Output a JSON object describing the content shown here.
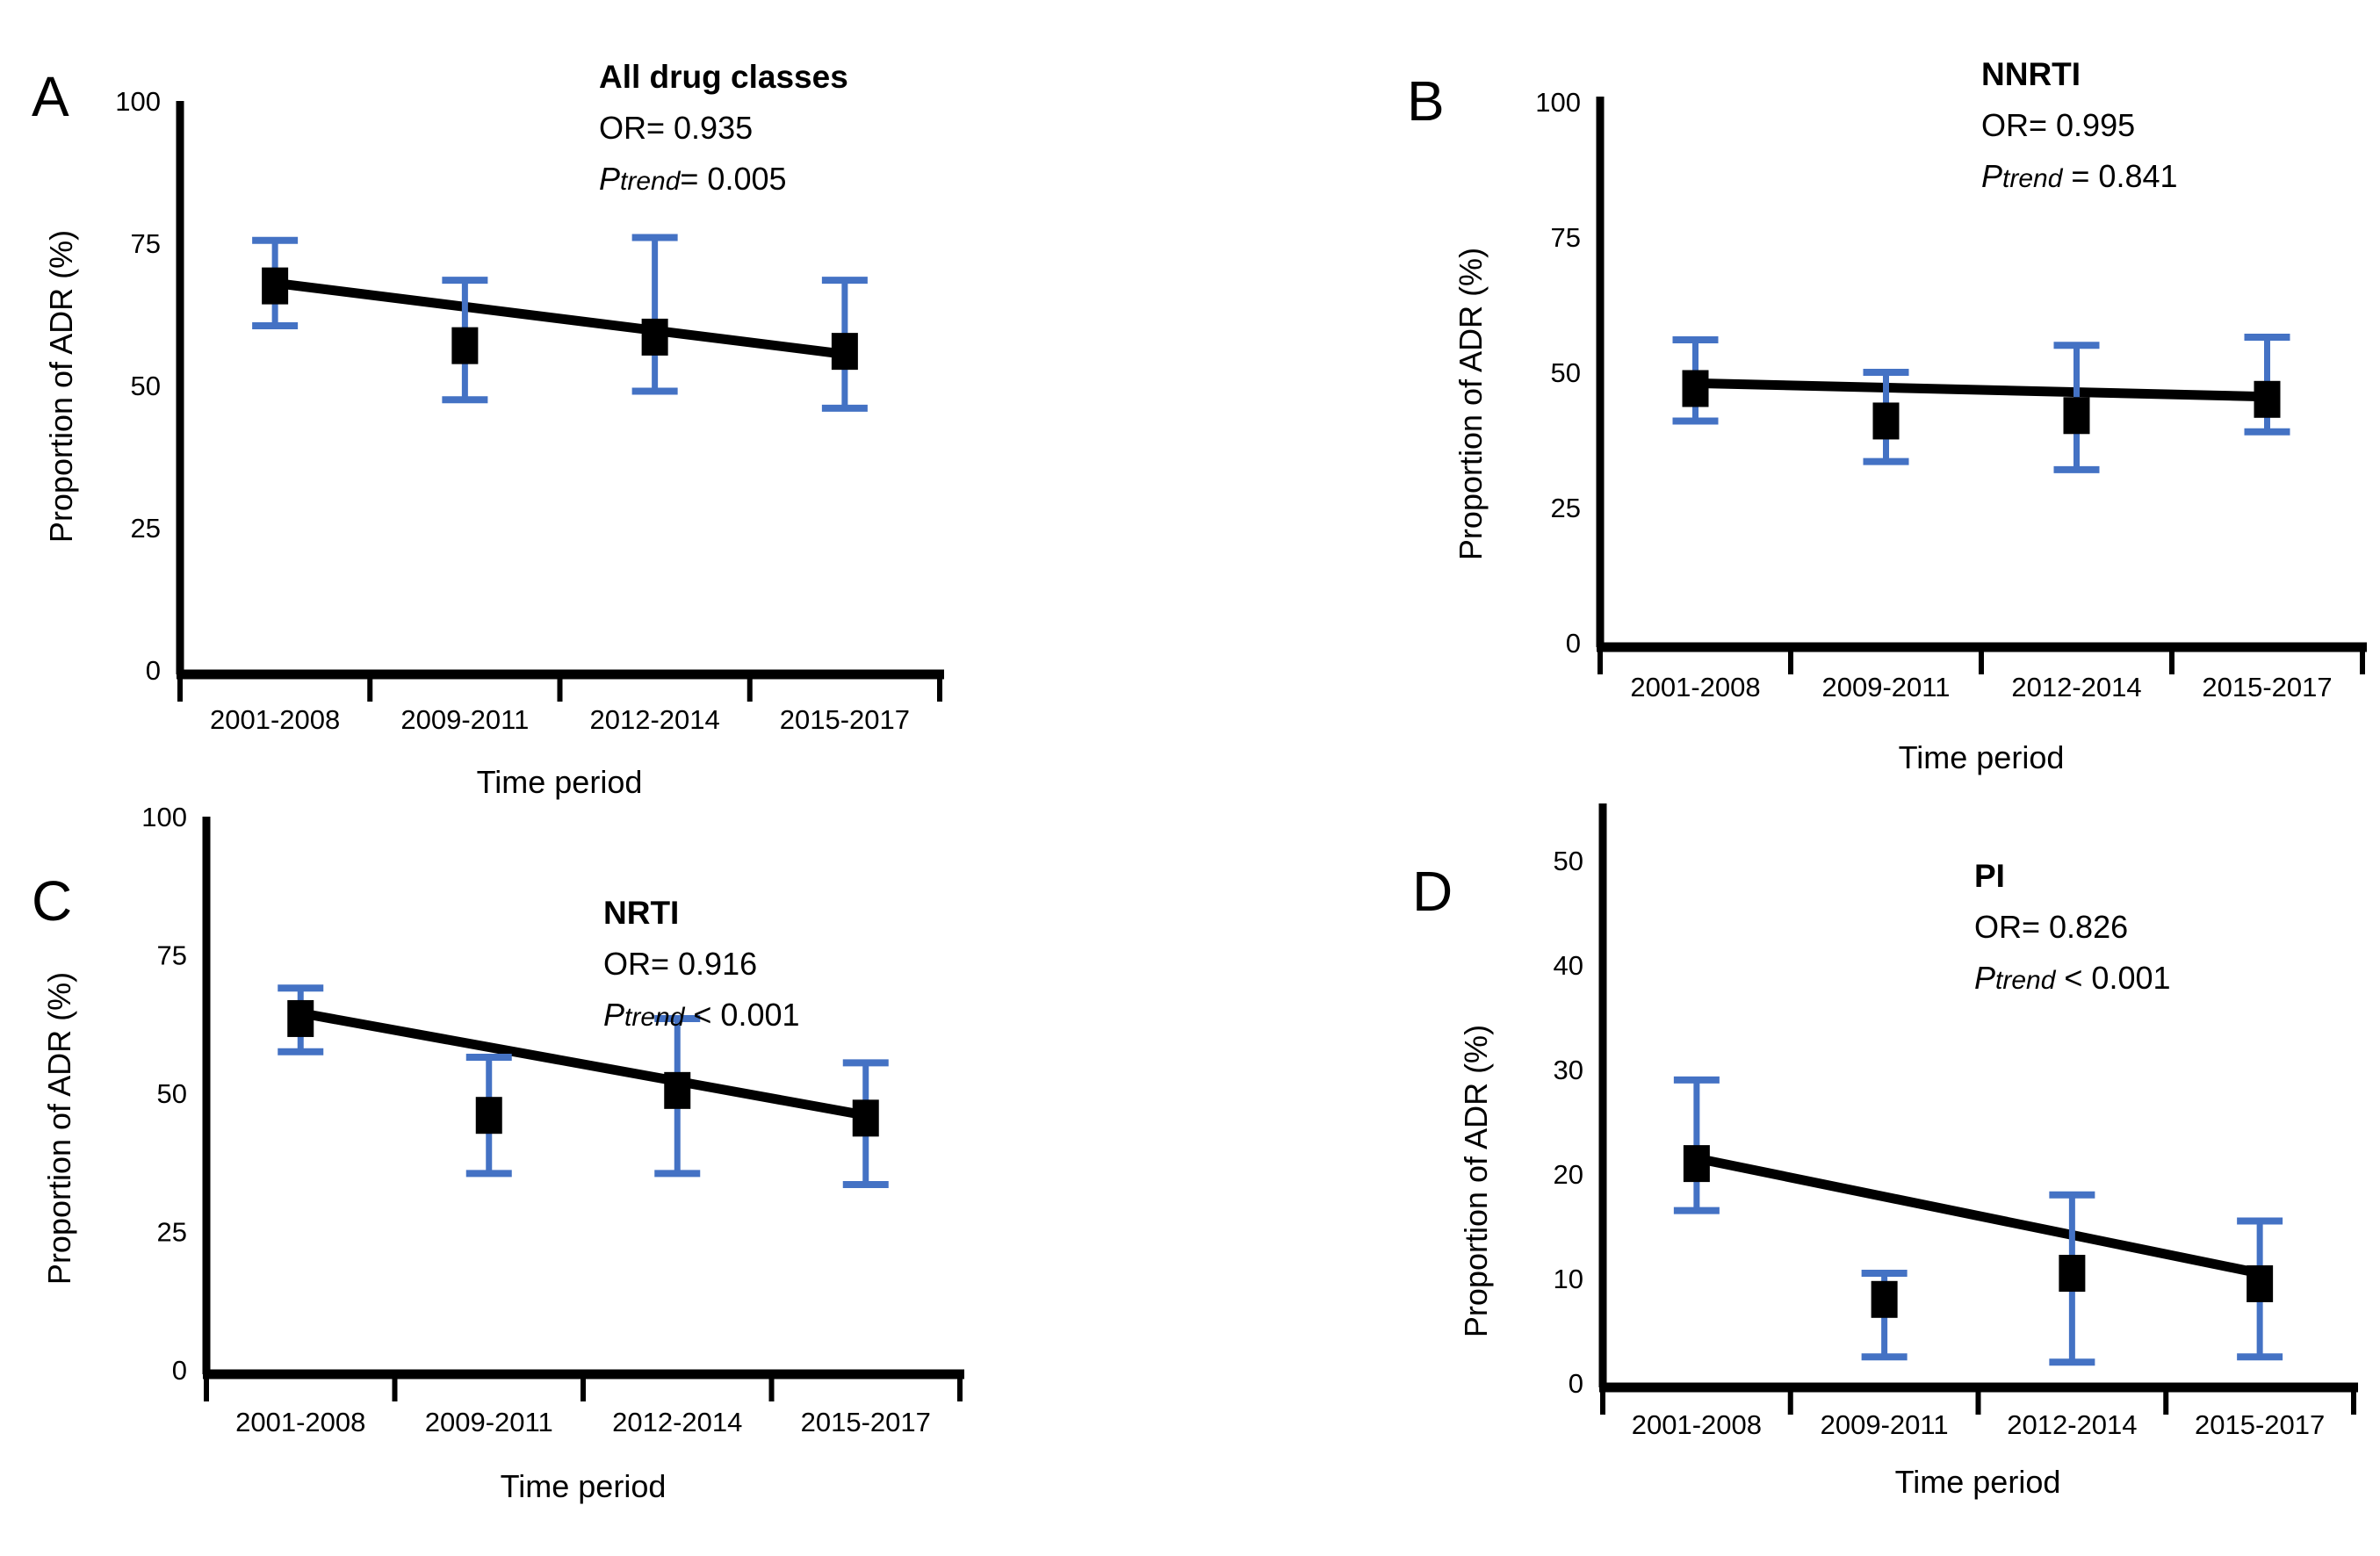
{
  "figure": {
    "background": "#ffffff",
    "error_bar_color": "#4472C4",
    "line_color": "#000000",
    "marker_color": "#000000"
  },
  "chart_data": [
    {
      "type": "scatter",
      "panel_letter": "A",
      "title": "All drug classes",
      "or_text": "OR= 0.935",
      "ptrend_p": "P",
      "ptrend_sub": "trend",
      "ptrend_rest": "= 0.005",
      "xlabel": "Time period",
      "ylabel": "Proportion of ADR (%)",
      "categories": [
        "2001-2008",
        "2009-2011",
        "2012-2014",
        "2015-2017"
      ],
      "values": [
        67.5,
        57,
        58.5,
        56
      ],
      "ci_low": [
        60.5,
        47.5,
        49,
        46
      ],
      "ci_high": [
        75.5,
        68.5,
        76,
        68.5
      ],
      "trend_line": {
        "start": 68,
        "end": 55.5
      },
      "ylim": [
        0,
        100
      ],
      "yticks": [
        0,
        25,
        50,
        75,
        100
      ],
      "legend": "none",
      "grid": "off"
    },
    {
      "type": "scatter",
      "panel_letter": "B",
      "title": "NNRTI",
      "or_text": "OR= 0.995",
      "ptrend_p": "P",
      "ptrend_sub": "trend",
      "ptrend_rest": " = 0.841",
      "xlabel": "Time period",
      "ylabel": "Proportion of ADR (%)",
      "categories": [
        "2001-2008",
        "2009-2011",
        "2012-2014",
        "2015-2017"
      ],
      "values": [
        47,
        41,
        42,
        45
      ],
      "ci_low": [
        41,
        33.5,
        32,
        39
      ],
      "ci_high": [
        56,
        50,
        55,
        56.5
      ],
      "trend_line": {
        "start": 48,
        "end": 45.5
      },
      "ylim": [
        0,
        100
      ],
      "yticks": [
        0,
        25,
        50,
        75,
        100
      ],
      "legend": "none",
      "grid": "off"
    },
    {
      "type": "scatter",
      "panel_letter": "C",
      "title": "NRTI",
      "or_text": "OR= 0.916",
      "ptrend_p": "P",
      "ptrend_sub": "trend",
      "ptrend_rest": " < 0.001",
      "xlabel": "Time period",
      "ylabel": "Proportion of ADR (%)",
      "categories": [
        "2001-2008",
        "2009-2011",
        "2012-2014",
        "2015-2017"
      ],
      "values": [
        63.5,
        46,
        50.5,
        45.5
      ],
      "ci_low": [
        57.5,
        35.5,
        35.5,
        33.5
      ],
      "ci_high": [
        69,
        56.5,
        63.5,
        55.5
      ],
      "trend_line": {
        "start": 64.5,
        "end": 46
      },
      "ylim": [
        0,
        100
      ],
      "yticks": [
        0,
        25,
        50,
        75,
        100
      ],
      "legend": "none",
      "grid": "off"
    },
    {
      "type": "scatter",
      "panel_letter": "D",
      "title": "PI",
      "or_text": "OR= 0.826",
      "ptrend_p": "P",
      "ptrend_sub": "trend",
      "ptrend_rest": " < 0.001",
      "xlabel": "Time period",
      "ylabel": "Proportion of ADR (%)",
      "categories": [
        "2001-2008",
        "2009-2011",
        "2012-2014",
        "2015-2017"
      ],
      "values": [
        21,
        8,
        10.5,
        9.5
      ],
      "ci_low": [
        16.5,
        2.5,
        2,
        2.5
      ],
      "ci_high": [
        29,
        10.5,
        18,
        15.5
      ],
      "trend_line": {
        "start": 21.5,
        "end": 10.5
      },
      "ylim": [
        0,
        55
      ],
      "yticks": [
        0,
        10,
        20,
        30,
        40,
        50
      ],
      "legend": "none",
      "grid": "off"
    }
  ]
}
